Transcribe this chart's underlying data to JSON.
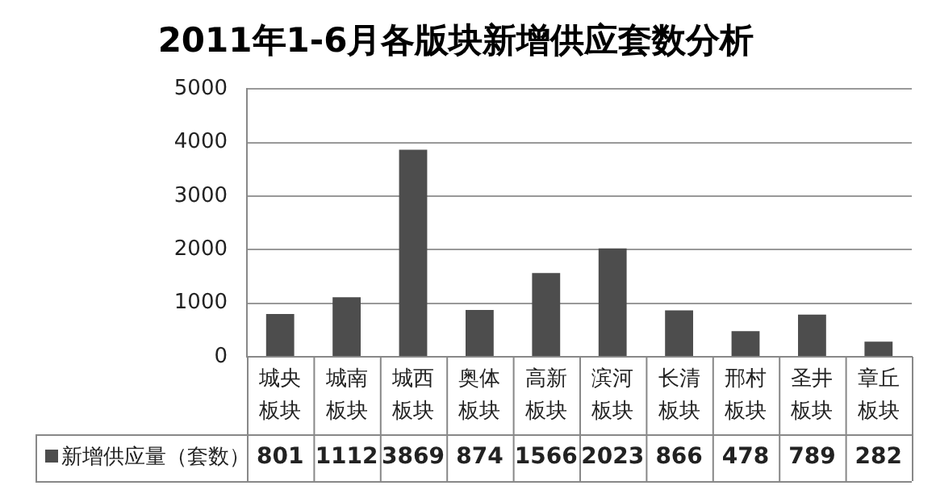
{
  "chart_data": {
    "type": "bar",
    "title": "2011年1-6月各版块新增供应套数分析",
    "categories": [
      "城央板块",
      "城南板块",
      "城西板块",
      "奥体板块",
      "高新板块",
      "滨河板块",
      "长清板块",
      "邢村板块",
      "圣井板块",
      "章丘板块"
    ],
    "series": [
      {
        "name": "新增供应量（套数）",
        "color": "#4d4d4d",
        "values": [
          801,
          1112,
          3869,
          874,
          1566,
          2023,
          866,
          478,
          789,
          282
        ]
      }
    ],
    "ylim": [
      0,
      5000
    ],
    "yticks": [
      0,
      1000,
      2000,
      3000,
      4000,
      5000
    ],
    "grid": "y",
    "legend": "bottom",
    "data_labels": true
  }
}
